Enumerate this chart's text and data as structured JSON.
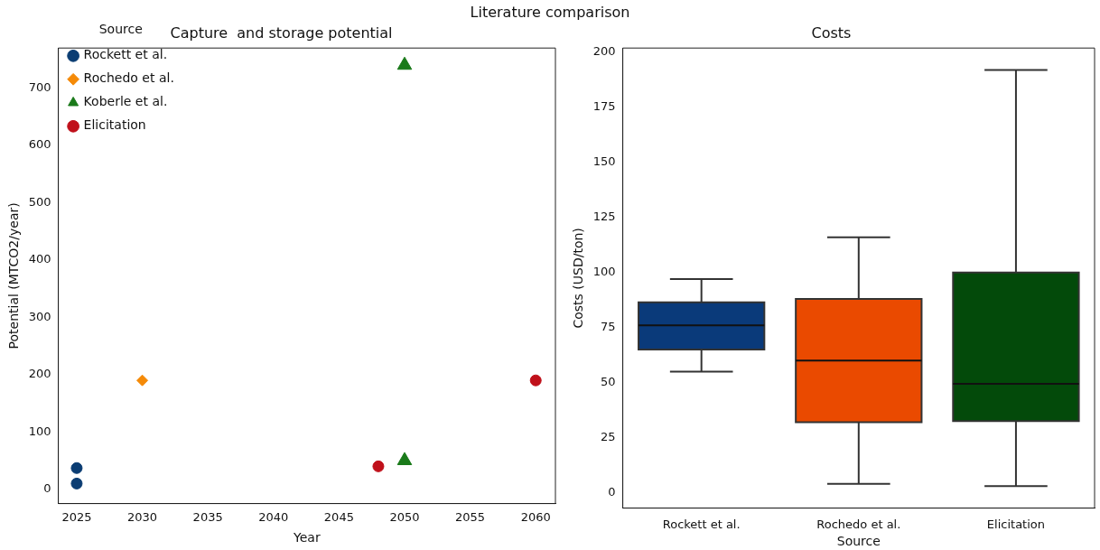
{
  "chart_data": [
    {
      "type": "other",
      "title": "Literature comparison"
    },
    {
      "type": "scatter",
      "title": "Capture  and storage potential",
      "xlabel": "Year",
      "ylabel": "Potential (MTCO2/year)",
      "legend_title": "Source",
      "legend": "top left",
      "grid": false,
      "xlim": [
        2023.6,
        2061.5
      ],
      "xticks": [
        2025,
        2030,
        2035,
        2040,
        2045,
        2050,
        2055,
        2060
      ],
      "ylim": [
        -25,
        770
      ],
      "yticks": [
        0,
        100,
        200,
        300,
        400,
        500,
        600,
        700
      ],
      "series": [
        {
          "name": "Rockett et al.",
          "color": "#0b3d73",
          "marker": "circle",
          "x": [
            2025,
            2025
          ],
          "values": [
            37,
            10
          ]
        },
        {
          "name": "Rochedo et al.",
          "color": "#f58a07",
          "marker": "diamond",
          "x": [
            2030
          ],
          "values": [
            190
          ]
        },
        {
          "name": "Koberle et al.",
          "color": "#1a7a1a",
          "marker": "triangle",
          "x": [
            2050,
            2050
          ],
          "values": [
            740,
            50
          ]
        },
        {
          "name": "Elicitation",
          "color": "#c0101a",
          "marker": "circle",
          "x": [
            2048,
            2060
          ],
          "values": [
            40,
            190
          ]
        }
      ]
    },
    {
      "type": "box",
      "title": "Costs",
      "xlabel": "Source",
      "ylabel": "Costs (USD/ton)",
      "legend": false,
      "grid": false,
      "categories": [
        "Rockett et al.",
        "Rochedo et al.",
        "Elicitation"
      ],
      "colors": [
        "#0a3a7a",
        "#ea4a00",
        "#034a0a"
      ],
      "ylim": [
        -7,
        202
      ],
      "yticks": [
        0,
        25,
        50,
        75,
        100,
        125,
        150,
        175,
        200
      ],
      "boxes": [
        {
          "low": 55,
          "q1": 65,
          "median": 76,
          "q3": 86.5,
          "high": 97
        },
        {
          "low": 4,
          "q1": 32,
          "median": 60,
          "q3": 88,
          "high": 116
        },
        {
          "low": 3,
          "q1": 32.5,
          "median": 49.5,
          "q3": 100,
          "high": 192
        }
      ]
    }
  ]
}
